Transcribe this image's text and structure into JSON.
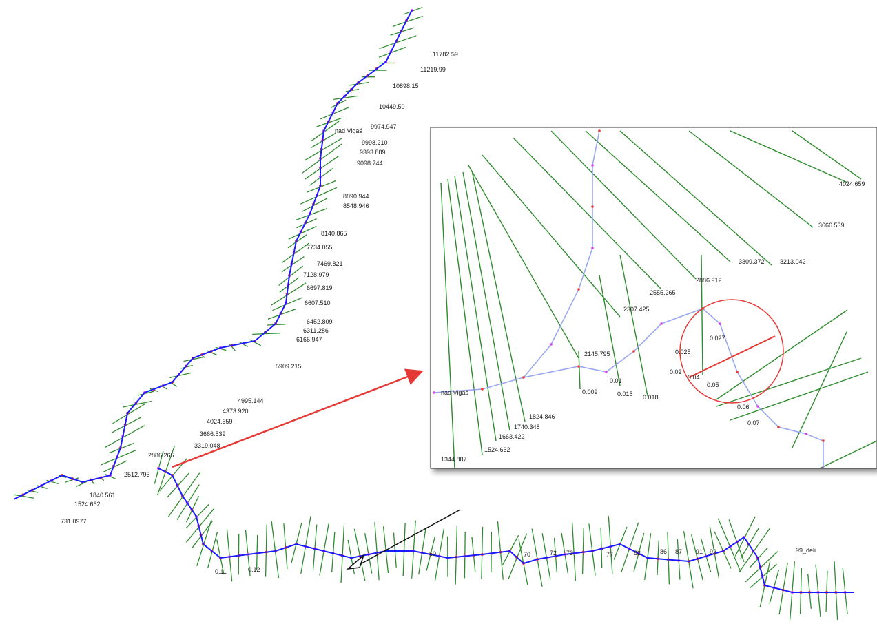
{
  "main_labels": [
    "11782.59",
    "11219.99",
    "10898.15",
    "10449.50",
    "9974.947",
    "nad Vigaš",
    "9998.210",
    "9393.889",
    "9098.744",
    "8890.944",
    "8548.946",
    "8140.865",
    "7734.055",
    "7469.821",
    "7128.979",
    "6697.819",
    "6607.510",
    "6452.809",
    "6311.286",
    "6166.947",
    "5909.215",
    "4995.144",
    "4373.920",
    "4024.659",
    "3666.539",
    "3319.048",
    "2886.265",
    "2512.795",
    "1840.561",
    "1524.662",
    "731.0977",
    "99_deli"
  ],
  "bottom_labels": [
    "0.11",
    "0.12",
    "60",
    "70",
    "72",
    "73",
    "77",
    "82",
    "86",
    "87",
    "91",
    "92"
  ],
  "inset_labels": [
    "4024.659",
    "3666.539",
    "3309.372",
    "3213.042",
    "2886.912",
    "2555.265",
    "2307.425",
    "2145.795",
    "1824.846",
    "1740.348",
    "1663.422",
    "1524.662",
    "1344.887",
    "nad Vigaš",
    "0.027",
    "0.025",
    "0.02",
    "0.04",
    "0.05",
    "0.01",
    "0.009",
    "0.015",
    "0.018",
    "0.06",
    "0.07"
  ]
}
